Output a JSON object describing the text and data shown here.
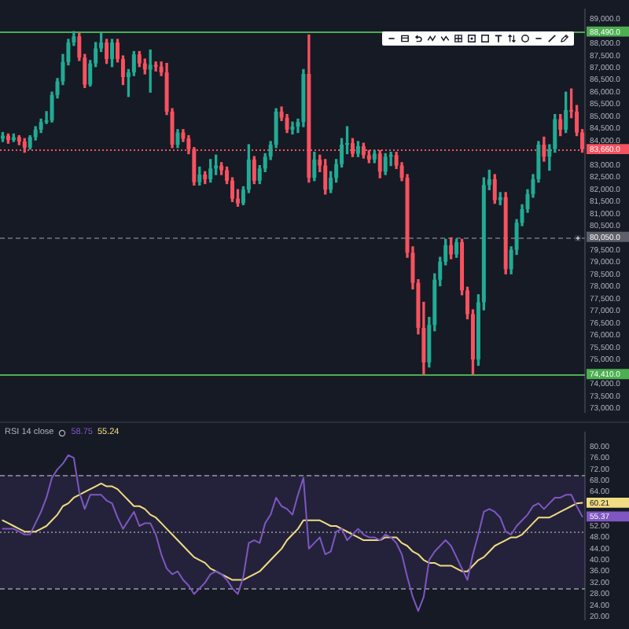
{
  "chart_data": [
    {
      "type": "candlestick",
      "categories": [
        null,
        null,
        null,
        null,
        null,
        null,
        null,
        null,
        null,
        null,
        null,
        null,
        null,
        null,
        null,
        null,
        null,
        null,
        null,
        null,
        null,
        null,
        null,
        null,
        null,
        null,
        null,
        null,
        null,
        null,
        null,
        null,
        null,
        null,
        null,
        null,
        null,
        null,
        null,
        null,
        null,
        null,
        null,
        null,
        null,
        null,
        null,
        null,
        null,
        null,
        null,
        null,
        null,
        null,
        null,
        null,
        null,
        null,
        null,
        null,
        null,
        null,
        null,
        null,
        null,
        null,
        null,
        null,
        null,
        null,
        null,
        null,
        null,
        null,
        null,
        null,
        null,
        null,
        null,
        null,
        null,
        null,
        null,
        null,
        null,
        null,
        null,
        null,
        null,
        null,
        null,
        null,
        null,
        null,
        null,
        null,
        null,
        null,
        null,
        null,
        null,
        null,
        null,
        null,
        null,
        null,
        null
      ],
      "ohlc": [
        [
          84090,
          84340,
          83970,
          84210
        ],
        [
          84210,
          84280,
          83900,
          84030
        ],
        [
          84030,
          84280,
          83970,
          84150
        ],
        [
          84150,
          84210,
          83840,
          83970
        ],
        [
          83970,
          84090,
          83530,
          83720
        ],
        [
          83720,
          84210,
          83660,
          84150
        ],
        [
          84150,
          84580,
          84030,
          84460
        ],
        [
          84460,
          84890,
          84340,
          84770
        ],
        [
          84770,
          85200,
          84710,
          84830
        ],
        [
          84830,
          86000,
          84770,
          85880
        ],
        [
          85880,
          86560,
          85760,
          86440
        ],
        [
          86440,
          87550,
          86310,
          87240
        ],
        [
          87240,
          88170,
          87120,
          88040
        ],
        [
          88040,
          88490,
          87920,
          88290
        ],
        [
          88290,
          88410,
          87300,
          87420
        ],
        [
          87420,
          87550,
          86190,
          86310
        ],
        [
          86310,
          87300,
          86250,
          87180
        ],
        [
          87180,
          88040,
          87050,
          87800
        ],
        [
          87800,
          88410,
          87670,
          88040
        ],
        [
          88040,
          88170,
          87180,
          87360
        ],
        [
          87360,
          88170,
          87050,
          88040
        ],
        [
          88040,
          88170,
          87240,
          87360
        ],
        [
          87360,
          87490,
          86310,
          86620
        ],
        [
          86620,
          86930,
          85820,
          86810
        ],
        [
          86810,
          87670,
          86680,
          87550
        ],
        [
          87550,
          87670,
          87050,
          87180
        ],
        [
          87180,
          87360,
          86750,
          86930
        ],
        [
          86930,
          87730,
          86000,
          87120
        ],
        [
          87120,
          87240,
          86870,
          87050
        ],
        [
          87050,
          87240,
          86680,
          86810
        ],
        [
          86810,
          87180,
          85080,
          85200
        ],
        [
          85200,
          85320,
          83720,
          83840
        ],
        [
          83840,
          84460,
          83720,
          84340
        ],
        [
          84340,
          84460,
          83970,
          84090
        ],
        [
          84090,
          84210,
          83470,
          83660
        ],
        [
          83660,
          83720,
          82180,
          82300
        ],
        [
          82300,
          82920,
          82180,
          82610
        ],
        [
          82610,
          82730,
          82240,
          82420
        ],
        [
          82420,
          83230,
          82300,
          82860
        ],
        [
          82860,
          83410,
          82610,
          82980
        ],
        [
          82980,
          83100,
          82610,
          82790
        ],
        [
          82790,
          82920,
          82240,
          82360
        ],
        [
          82360,
          82480,
          81500,
          81620
        ],
        [
          81620,
          81990,
          81310,
          81430
        ],
        [
          81430,
          82110,
          81370,
          81990
        ],
        [
          81990,
          83840,
          81870,
          83230
        ],
        [
          83230,
          83350,
          82240,
          82360
        ],
        [
          82360,
          82980,
          82240,
          82860
        ],
        [
          82860,
          83470,
          82730,
          83350
        ],
        [
          83350,
          83970,
          83230,
          83840
        ],
        [
          83840,
          85320,
          83720,
          85200
        ],
        [
          85200,
          85390,
          84830,
          84950
        ],
        [
          84950,
          85080,
          84340,
          84460
        ],
        [
          84460,
          84770,
          84280,
          84580
        ],
        [
          84580,
          84890,
          84340,
          84770
        ],
        [
          84770,
          86930,
          84580,
          86750
        ],
        [
          86750,
          88350,
          82300,
          82480
        ],
        [
          82480,
          83530,
          82360,
          83230
        ],
        [
          83230,
          83410,
          82730,
          82980
        ],
        [
          82980,
          83230,
          81810,
          81990
        ],
        [
          81990,
          82730,
          81870,
          82480
        ],
        [
          82480,
          83230,
          82300,
          83040
        ],
        [
          83040,
          84090,
          82920,
          83840
        ],
        [
          83840,
          84580,
          83470,
          83900
        ],
        [
          83900,
          84090,
          83350,
          83470
        ],
        [
          83470,
          83970,
          83350,
          83780
        ],
        [
          83780,
          83900,
          83290,
          83410
        ],
        [
          83410,
          83600,
          83100,
          83230
        ],
        [
          83230,
          83600,
          83100,
          83470
        ],
        [
          83470,
          83600,
          82480,
          82730
        ],
        [
          82730,
          83470,
          82610,
          83350
        ],
        [
          83350,
          83530,
          82980,
          83410
        ],
        [
          83410,
          83530,
          82860,
          82980
        ],
        [
          82980,
          83100,
          82360,
          82480
        ],
        [
          82480,
          82610,
          79210,
          79400
        ],
        [
          79400,
          79640,
          77910,
          78160
        ],
        [
          78160,
          78290,
          76060,
          76310
        ],
        [
          76310,
          77360,
          74410,
          74890
        ],
        [
          74890,
          76740,
          74700,
          76430
        ],
        [
          76430,
          78530,
          76190,
          78290
        ],
        [
          78290,
          79210,
          78040,
          79030
        ],
        [
          79030,
          79950,
          78900,
          79710
        ],
        [
          79710,
          80010,
          79150,
          79330
        ],
        [
          79330,
          79950,
          79210,
          79830
        ],
        [
          79830,
          79950,
          77670,
          77850
        ],
        [
          77850,
          77980,
          76680,
          76870
        ],
        [
          76870,
          77050,
          74410,
          75010
        ],
        [
          75010,
          77670,
          74770,
          77360
        ],
        [
          77360,
          82480,
          77050,
          82180
        ],
        [
          82180,
          82790,
          81990,
          82420
        ],
        [
          82420,
          82610,
          81430,
          81560
        ],
        [
          81560,
          81870,
          81370,
          81680
        ],
        [
          81680,
          81870,
          78530,
          78720
        ],
        [
          78720,
          79640,
          78530,
          79520
        ],
        [
          79520,
          80760,
          79330,
          80630
        ],
        [
          80630,
          81370,
          80510,
          81190
        ],
        [
          81190,
          81990,
          81060,
          81810
        ],
        [
          81810,
          82610,
          81680,
          82420
        ],
        [
          82420,
          83970,
          82300,
          83840
        ],
        [
          83840,
          84150,
          83160,
          83350
        ],
        [
          83350,
          83840,
          82790,
          83660
        ],
        [
          83660,
          85080,
          83530,
          84890
        ],
        [
          84890,
          85080,
          84210,
          84460
        ],
        [
          84460,
          86000,
          84340,
          85260
        ],
        [
          85260,
          86130,
          84950,
          85200
        ],
        [
          85200,
          85450,
          84210,
          84340
        ],
        [
          84340,
          84460,
          83530,
          83660
        ]
      ],
      "colors": [
        "#22ab94",
        "#f7525f",
        "#22ab94",
        "#f7525f",
        "#f7525f",
        "#22ab94",
        "#22ab94",
        "#22ab94",
        "#22ab94",
        "#22ab94",
        "#22ab94",
        "#22ab94",
        "#22ab94",
        "#22ab94",
        "#f7525f",
        "#f7525f",
        "#22ab94",
        "#22ab94",
        "#22ab94",
        "#f7525f",
        "#22ab94",
        "#f7525f",
        "#f7525f",
        "#22ab94",
        "#22ab94",
        "#f7525f",
        "#f7525f",
        "#22ab94",
        "#f7525f",
        "#f7525f",
        "#f7525f",
        "#f7525f",
        "#22ab94",
        "#f7525f",
        "#f7525f",
        "#f7525f",
        "#22ab94",
        "#f7525f",
        "#22ab94",
        "#22ab94",
        "#f7525f",
        "#f7525f",
        "#f7525f",
        "#f7525f",
        "#22ab94",
        "#22ab94",
        "#f7525f",
        "#22ab94",
        "#22ab94",
        "#22ab94",
        "#22ab94",
        "#f7525f",
        "#f7525f",
        "#22ab94",
        "#22ab94",
        "#22ab94",
        "#f7525f",
        "#22ab94",
        "#f7525f",
        "#f7525f",
        "#22ab94",
        "#22ab94",
        "#22ab94",
        "#22ab94",
        "#f7525f",
        "#22ab94",
        "#f7525f",
        "#f7525f",
        "#22ab94",
        "#f7525f",
        "#22ab94",
        "#22ab94",
        "#f7525f",
        "#f7525f",
        "#f7525f",
        "#f7525f",
        "#f7525f",
        "#f7525f",
        "#22ab94",
        "#22ab94",
        "#22ab94",
        "#22ab94",
        "#f7525f",
        "#22ab94",
        "#f7525f",
        "#f7525f",
        "#f7525f",
        "#22ab94",
        "#22ab94",
        "#22ab94",
        "#f7525f",
        "#22ab94",
        "#f7525f",
        "#22ab94",
        "#22ab94",
        "#22ab94",
        "#22ab94",
        "#22ab94",
        "#22ab94",
        "#f7525f",
        "#22ab94",
        "#22ab94",
        "#f7525f",
        "#22ab94",
        "#f7525f",
        "#f7525f",
        "#f7525f"
      ],
      "ylim": [
        72850,
        89400
      ],
      "yticks": [
        {
          "value": 73000,
          "label": "73,000.0"
        },
        {
          "value": 73500,
          "label": "73,500.0"
        },
        {
          "value": 74000,
          "label": "74,000.0"
        },
        {
          "value": 75000,
          "label": "75,000.0"
        },
        {
          "value": 75500,
          "label": "75,500.0"
        },
        {
          "value": 76000,
          "label": "76,000.0"
        },
        {
          "value": 76500,
          "label": "76,500.0"
        },
        {
          "value": 77000,
          "label": "77,000.0"
        },
        {
          "value": 77500,
          "label": "77,500.0"
        },
        {
          "value": 78000,
          "label": "78,000.0"
        },
        {
          "value": 78500,
          "label": "78,500.0"
        },
        {
          "value": 79000,
          "label": "79,000.0"
        },
        {
          "value": 79500,
          "label": "79,500.0"
        },
        {
          "value": 80500,
          "label": "80,500.0"
        },
        {
          "value": 81000,
          "label": "81,000.0"
        },
        {
          "value": 81500,
          "label": "81,500.0"
        },
        {
          "value": 82000,
          "label": "82,000.0"
        },
        {
          "value": 82500,
          "label": "82,500.0"
        },
        {
          "value": 83000,
          "label": "83,000.0"
        },
        {
          "value": 84000,
          "label": "84,000.0"
        },
        {
          "value": 84500,
          "label": "84,500.0"
        },
        {
          "value": 85000,
          "label": "85,000.0"
        },
        {
          "value": 85500,
          "label": "85,500.0"
        },
        {
          "value": 86000,
          "label": "86,000.0"
        },
        {
          "value": 86500,
          "label": "86,500.0"
        },
        {
          "value": 87000,
          "label": "87,000.0"
        },
        {
          "value": 87500,
          "label": "87,500.0"
        },
        {
          "value": 88000,
          "label": "88,000.0"
        },
        {
          "value": 89000,
          "label": "89,000.0"
        }
      ],
      "tick_labels": "y",
      "ref_lines": [
        {
          "axis": "y",
          "value": 88490,
          "label": "88,490.0",
          "color": "#4caf50",
          "line_style": "solid"
        },
        {
          "axis": "y",
          "value": 74410,
          "label": "74,410.0",
          "color": "#4caf50",
          "line_style": "solid"
        },
        {
          "axis": "y",
          "value": 83660,
          "label": "83,660.0",
          "color": "#f7525f",
          "line_style": "dotted"
        },
        {
          "axis": "y",
          "value": 80050,
          "label": "80,050.0",
          "color": "#5d606b",
          "line_style": "dashed"
        }
      ]
    },
    {
      "type": "line",
      "title": "RSI 14 close",
      "annotations": [
        "58.75",
        "55.24"
      ],
      "categories": [
        null,
        null,
        null,
        null,
        null,
        null,
        null,
        null,
        null,
        null,
        null,
        null,
        null,
        null,
        null,
        null,
        null,
        null,
        null,
        null,
        null,
        null,
        null,
        null,
        null,
        null,
        null,
        null,
        null,
        null,
        null,
        null,
        null,
        null,
        null,
        null,
        null,
        null,
        null,
        null,
        null,
        null,
        null,
        null,
        null,
        null,
        null,
        null,
        null,
        null,
        null,
        null,
        null,
        null,
        null,
        null,
        null,
        null,
        null,
        null,
        null,
        null,
        null,
        null,
        null,
        null,
        null,
        null,
        null,
        null,
        null,
        null,
        null,
        null,
        null,
        null,
        null,
        null,
        null,
        null,
        null,
        null,
        null,
        null,
        null,
        null,
        null,
        null,
        null,
        null,
        null,
        null,
        null,
        null,
        null,
        null,
        null,
        null,
        null,
        null,
        null,
        null,
        null,
        null,
        null,
        null,
        null
      ],
      "series": [
        {
          "color": "#7e57c2",
          "values": [
            51,
            51,
            51,
            50,
            49,
            49,
            53,
            57,
            62,
            69,
            72,
            74,
            77,
            76,
            64,
            58,
            63,
            63,
            63,
            61,
            60,
            55,
            51,
            54,
            57,
            52,
            53,
            53,
            49,
            42,
            37,
            35,
            36,
            33,
            31,
            28,
            30,
            32,
            35,
            36,
            35,
            33,
            30,
            28,
            34,
            46,
            47,
            46,
            53,
            56,
            62,
            59,
            58,
            56,
            63,
            69,
            44,
            46,
            48,
            42,
            43,
            50,
            51,
            47,
            49,
            51,
            49,
            48,
            48,
            47,
            49,
            48,
            46,
            42,
            34,
            27,
            22,
            27,
            40,
            43,
            45,
            47,
            45,
            41,
            37,
            33,
            42,
            49,
            57,
            58,
            57,
            55,
            50,
            49,
            52,
            54,
            56,
            59,
            60,
            58,
            60,
            62,
            62,
            63,
            63,
            59,
            55.37
          ],
          "value_labels": [
            null,
            null,
            null,
            null,
            null,
            null,
            null,
            null,
            null,
            null,
            null,
            null,
            null,
            null,
            null,
            null,
            null,
            null,
            null,
            null,
            null,
            null,
            null,
            null,
            null,
            null,
            null,
            null,
            null,
            null,
            null,
            null,
            null,
            null,
            null,
            null,
            null,
            null,
            null,
            null,
            null,
            null,
            null,
            null,
            null,
            null,
            null,
            null,
            null,
            null,
            null,
            null,
            null,
            null,
            null,
            null,
            null,
            null,
            null,
            null,
            null,
            null,
            null,
            null,
            null,
            null,
            null,
            null,
            null,
            null,
            null,
            null,
            null,
            null,
            null,
            null,
            null,
            null,
            null,
            null,
            null,
            null,
            null,
            null,
            null,
            null,
            null,
            null,
            null,
            null,
            null,
            null,
            null,
            null,
            null,
            null,
            null,
            null,
            null,
            null,
            null,
            null,
            null,
            null,
            null,
            null,
            "55.37"
          ]
        },
        {
          "color": "#f0dc82",
          "values": [
            54,
            53,
            52,
            51,
            50,
            50,
            50,
            51,
            52,
            54,
            56,
            59,
            60,
            62,
            63,
            64,
            65,
            66,
            67,
            66,
            66,
            65,
            63,
            61,
            59,
            59,
            58,
            56,
            55,
            53,
            51,
            49,
            47,
            45,
            43,
            41,
            40,
            39,
            37,
            36,
            35,
            34,
            33,
            33,
            33,
            34,
            35,
            36,
            38,
            40,
            42,
            44,
            47,
            49,
            51,
            54,
            54,
            54,
            54,
            53,
            52,
            52,
            51,
            50,
            49,
            48,
            47,
            47,
            47,
            47,
            48,
            48,
            48,
            46,
            45,
            43,
            42,
            40,
            39,
            39,
            38,
            38,
            38,
            37,
            36,
            36,
            38,
            40,
            41,
            43,
            45,
            46,
            47,
            48,
            48,
            49,
            51,
            53,
            55,
            55,
            55,
            56,
            57,
            58,
            59,
            60,
            60.21
          ],
          "value_labels": [
            null,
            null,
            null,
            null,
            null,
            null,
            null,
            null,
            null,
            null,
            null,
            null,
            null,
            null,
            null,
            null,
            null,
            null,
            null,
            null,
            null,
            null,
            null,
            null,
            null,
            null,
            null,
            null,
            null,
            null,
            null,
            null,
            null,
            null,
            null,
            null,
            null,
            null,
            null,
            null,
            null,
            null,
            null,
            null,
            null,
            null,
            null,
            null,
            null,
            null,
            null,
            null,
            null,
            null,
            null,
            null,
            null,
            null,
            null,
            null,
            null,
            null,
            null,
            null,
            null,
            null,
            null,
            null,
            null,
            null,
            null,
            null,
            null,
            null,
            null,
            null,
            null,
            null,
            null,
            null,
            null,
            null,
            null,
            null,
            null,
            null,
            null,
            null,
            null,
            null,
            null,
            null,
            null,
            null,
            null,
            null,
            null,
            null,
            null,
            null,
            null,
            null,
            null,
            null,
            null,
            null,
            "60.21"
          ]
        }
      ],
      "ylim": [
        19,
        85
      ],
      "yticks": [
        {
          "value": 20,
          "label": "20.00"
        },
        {
          "value": 24,
          "label": "24.00"
        },
        {
          "value": 28,
          "label": "28.00"
        },
        {
          "value": 32,
          "label": "32.00"
        },
        {
          "value": 36,
          "label": "36.00"
        },
        {
          "value": 40,
          "label": "40.00"
        },
        {
          "value": 44,
          "label": "44.00"
        },
        {
          "value": 48,
          "label": "48.00"
        },
        {
          "value": 52,
          "label": "52.00"
        },
        {
          "value": 64,
          "label": "64.00"
        },
        {
          "value": 68,
          "label": "68.00"
        },
        {
          "value": 72,
          "label": "72.00"
        },
        {
          "value": 76,
          "label": "76.00"
        },
        {
          "value": 80,
          "label": "80.00"
        }
      ],
      "tick_labels": "y",
      "bands": [
        {
          "axis": "y",
          "from": 30,
          "to": 70,
          "color": "#7e57c2"
        }
      ],
      "ref_lines": [
        {
          "axis": "y",
          "value": 70,
          "color": "#787b86",
          "line_style": "dashed"
        },
        {
          "axis": "y",
          "value": 50,
          "color": "#787b86",
          "line_style": "dotted"
        },
        {
          "axis": "y",
          "value": 30,
          "color": "#787b86",
          "line_style": "dashed"
        }
      ]
    }
  ]
}
